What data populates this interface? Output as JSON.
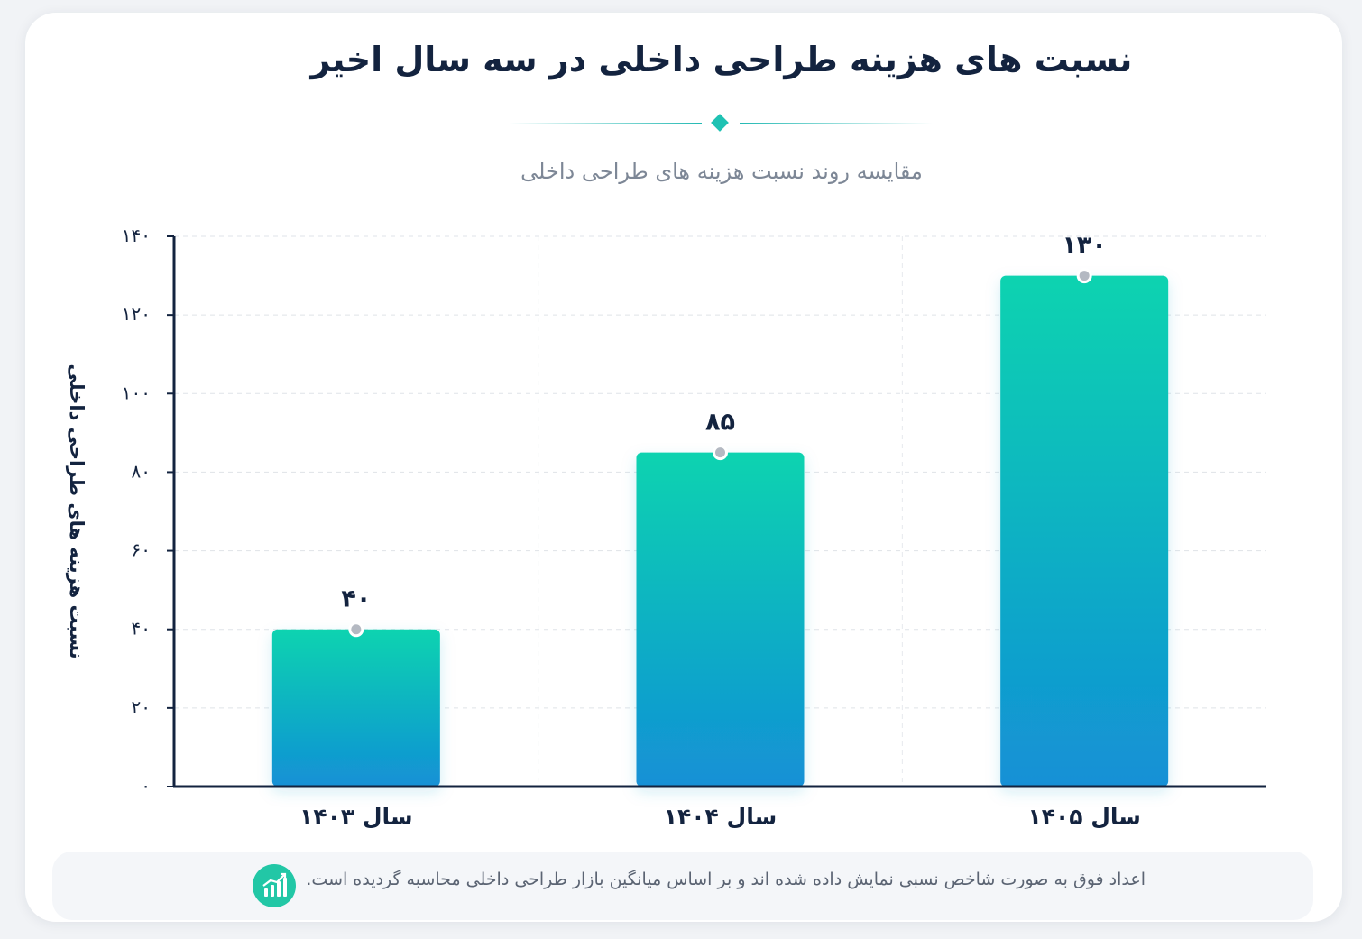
{
  "card": {
    "title": "نسبت های هزینه طراحی داخلی در سه سال اخیر",
    "subtitle": "مقایسه روند نسبت هزینه های طراحی داخلی",
    "footer_note": "اعداد فوق به صورت شاخص نسبی نمایش داده شده اند و بر اساس میانگین بازار طراحی داخلی محاسبه گردیده است.",
    "footer_icon": "bar-chart-growth-icon"
  },
  "colors": {
    "title": "#13233f",
    "bar_top": "#09d3b0",
    "bar_bottom": "#1390d6",
    "accent": "#1fc2b3",
    "axis": "#13233f"
  },
  "chart_data": {
    "type": "bar",
    "title": "نسبت های هزینه طراحی داخلی در سه سال اخیر",
    "subtitle": "مقایسه روند نسبت هزینه های طراحی داخلی",
    "ylabel": "نسبت هزینه های طراحی داخلی",
    "xlabel": "",
    "categories": [
      "سال ۱۴۰۳",
      "سال ۱۴۰۴",
      "سال ۱۴۰۵"
    ],
    "values": [
      40,
      85,
      130
    ],
    "value_labels": [
      "۴۰",
      "۸۵",
      "۱۳۰"
    ],
    "ylim": [
      0,
      140
    ],
    "yticks": [
      0,
      20,
      40,
      60,
      80,
      100,
      120,
      140
    ],
    "ytick_labels": [
      "۰",
      "۲۰",
      "۴۰",
      "۶۰",
      "۸۰",
      "۱۰۰",
      "۱۲۰",
      "۱۴۰"
    ],
    "grid": true,
    "legend": "none"
  }
}
